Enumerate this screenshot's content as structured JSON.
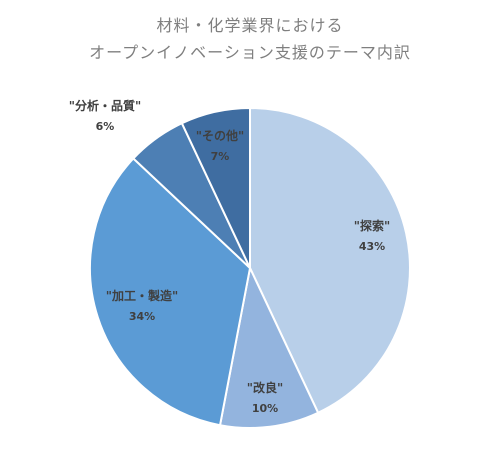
{
  "chart_data": {
    "type": "pie",
    "title_line1": "材料・化学業界における",
    "title_line2": "オープンイノベーション支援のテーマ内訳",
    "slices": [
      {
        "label": "\"探索\"",
        "value": 43,
        "pct_label": "43%",
        "color": "#b8cfe9"
      },
      {
        "label": "\"改良\"",
        "value": 10,
        "pct_label": "10%",
        "color": "#93b4de"
      },
      {
        "label": "\"加工・製造\"",
        "value": 34,
        "pct_label": "34%",
        "color": "#5b9bd5"
      },
      {
        "label": "\"分析・品質\"",
        "value": 6,
        "pct_label": "6%",
        "color": "#4d7fb4"
      },
      {
        "label": "\"その他\"",
        "value": 7,
        "pct_label": "7%",
        "color": "#3f6da1"
      }
    ],
    "legend": "none",
    "start_angle": "12 o'clock",
    "direction": "clockwise"
  }
}
